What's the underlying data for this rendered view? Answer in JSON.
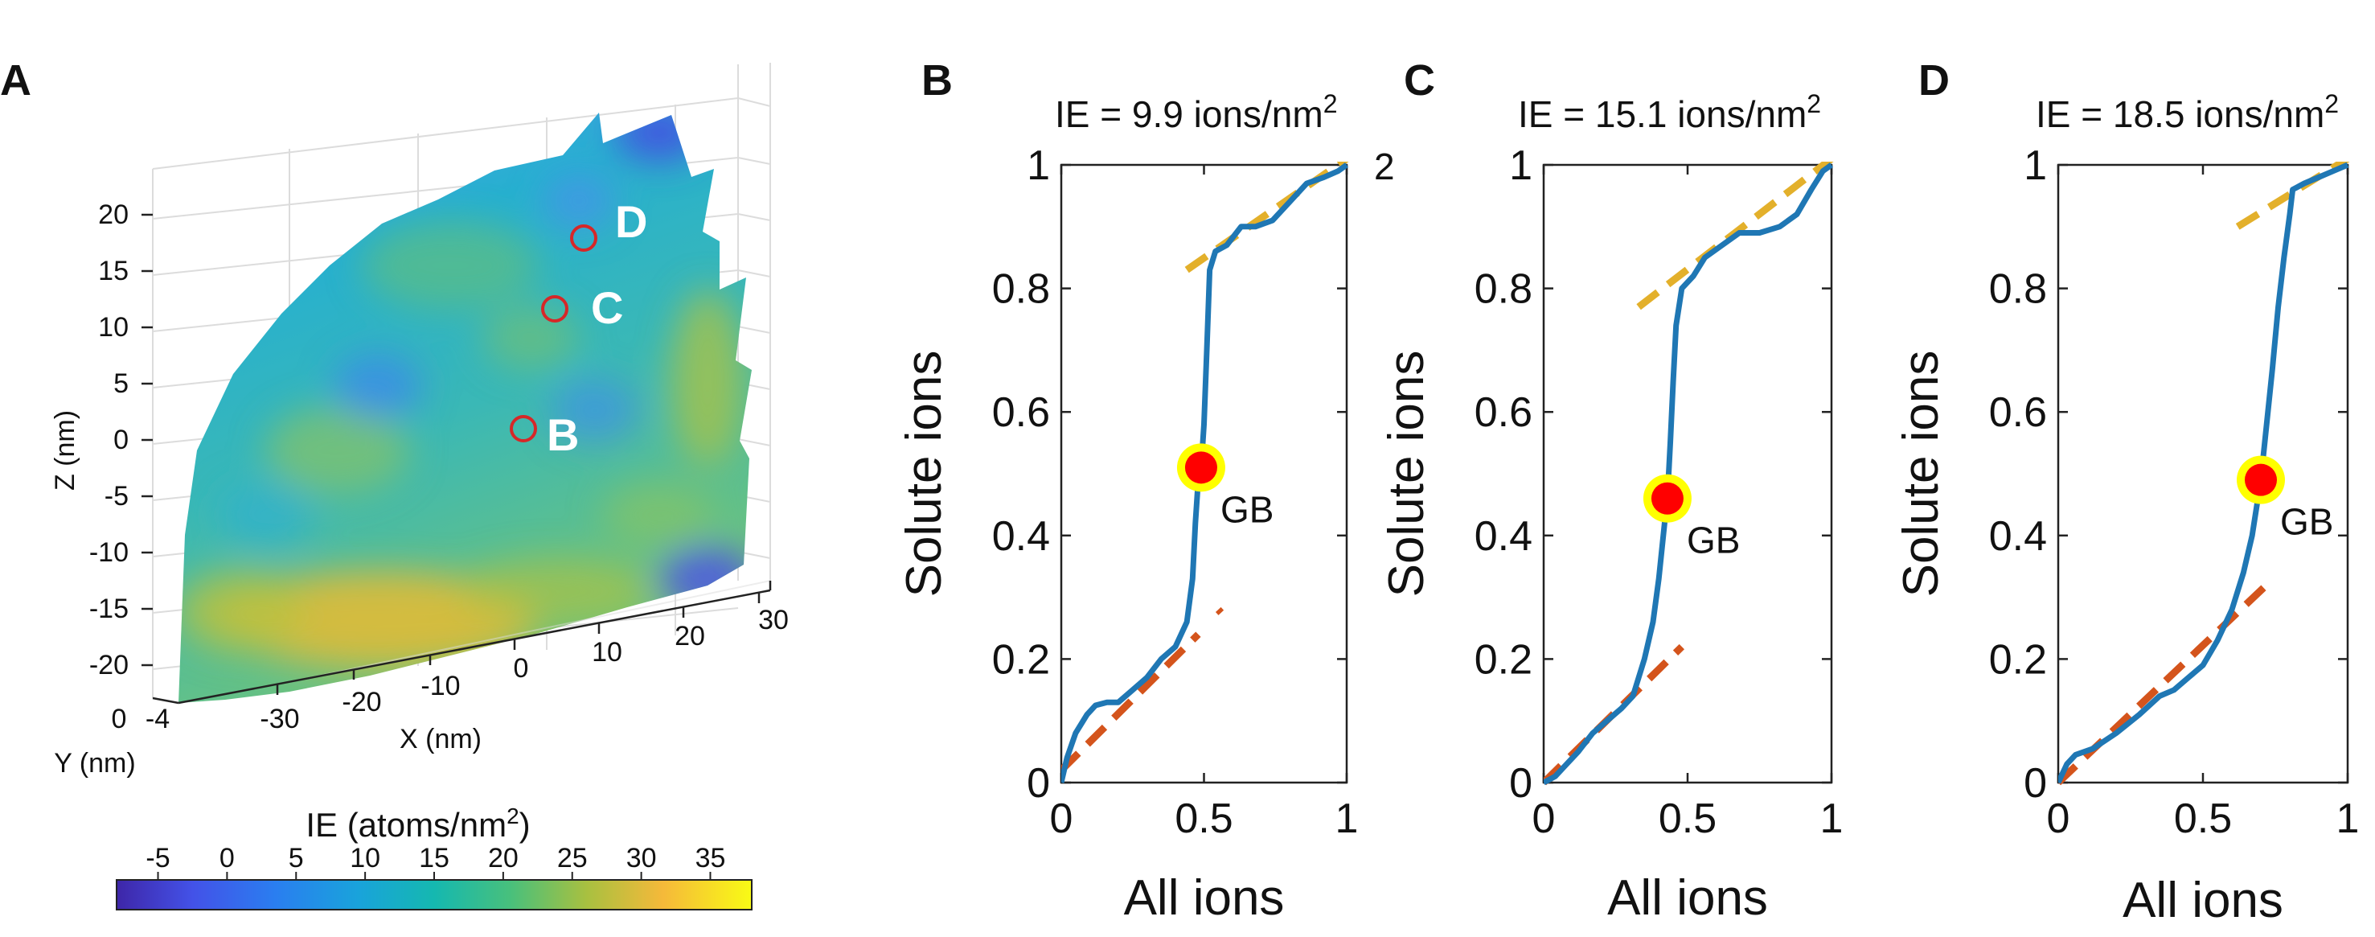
{
  "colors": {
    "curve": "#1f77b4",
    "fit_low": "#d4541c",
    "fit_high": "#e3b02b",
    "gb_fill": "#ff0000",
    "gb_ring": "#ffff00",
    "marker": "#d62728"
  },
  "panel_a": {
    "letter": "A",
    "z_label": "Z (nm)",
    "x_label": "X (nm)",
    "y_label": "Y (nm)",
    "z_ticks": [
      "20",
      "15",
      "10",
      "5",
      "0",
      "-5",
      "-10",
      "-15",
      "-20"
    ],
    "x_ticks": [
      "-30",
      "-20",
      "-10",
      "0",
      "10",
      "20",
      "30"
    ],
    "y_ticks": [
      "0",
      "-4"
    ],
    "points": [
      {
        "id": "B",
        "label": "B"
      },
      {
        "id": "C",
        "label": "C"
      },
      {
        "id": "D",
        "label": "D"
      }
    ],
    "colorbar": {
      "label_base": "IE (atoms/nm",
      "label_sup": "2",
      "label_end": ")",
      "ticks": [
        -5,
        0,
        5,
        10,
        15,
        20,
        25,
        30,
        35
      ],
      "range": [
        -8,
        38
      ]
    }
  },
  "chart_data": [
    {
      "type": "line",
      "panel": "B",
      "title_base": "IE = 9.9 ions/nm",
      "title_sup": "2",
      "xlabel": "All ions",
      "ylabel": "Solute ions",
      "xlim": [
        0,
        1
      ],
      "ylim": [
        0,
        1
      ],
      "xticks": [
        0,
        0.5,
        1
      ],
      "yticks": [
        0,
        0.2,
        0.4,
        0.6,
        0.8,
        1
      ],
      "xtick_labels": [
        "0",
        "0.5",
        "1"
      ],
      "ytick_labels": [
        "0",
        "0.2",
        "0.4",
        "0.6",
        "0.8",
        "1"
      ],
      "annotation": "2",
      "gb_label": "GB",
      "gb_point": [
        0.49,
        0.51
      ],
      "curve": [
        [
          0,
          0
        ],
        [
          0.02,
          0.04
        ],
        [
          0.05,
          0.08
        ],
        [
          0.09,
          0.11
        ],
        [
          0.12,
          0.125
        ],
        [
          0.16,
          0.13
        ],
        [
          0.2,
          0.13
        ],
        [
          0.25,
          0.15
        ],
        [
          0.3,
          0.17
        ],
        [
          0.35,
          0.2
        ],
        [
          0.4,
          0.22
        ],
        [
          0.44,
          0.26
        ],
        [
          0.46,
          0.33
        ],
        [
          0.47,
          0.42
        ],
        [
          0.48,
          0.49
        ],
        [
          0.49,
          0.51
        ],
        [
          0.5,
          0.58
        ],
        [
          0.51,
          0.7
        ],
        [
          0.52,
          0.83
        ],
        [
          0.54,
          0.86
        ],
        [
          0.58,
          0.87
        ],
        [
          0.63,
          0.9
        ],
        [
          0.68,
          0.9
        ],
        [
          0.74,
          0.91
        ],
        [
          0.8,
          0.94
        ],
        [
          0.86,
          0.97
        ],
        [
          0.92,
          0.98
        ],
        [
          0.97,
          0.99
        ],
        [
          1,
          1
        ]
      ],
      "fit_low": [
        [
          0,
          0.02
        ],
        [
          0.48,
          0.24
        ]
      ],
      "fit_low_stub": [
        [
          0.55,
          0.28
        ],
        [
          0.56,
          0.275
        ]
      ],
      "fit_high": [
        [
          0.44,
          0.83
        ],
        [
          1,
          1.01
        ]
      ]
    },
    {
      "type": "line",
      "panel": "C",
      "title_base": "IE = 15.1 ions/nm",
      "title_sup": "2",
      "xlabel": "All ions",
      "ylabel": "Solute ions",
      "xlim": [
        0,
        1
      ],
      "ylim": [
        0,
        1
      ],
      "xticks": [
        0,
        0.5,
        1
      ],
      "yticks": [
        0,
        0.2,
        0.4,
        0.6,
        0.8,
        1
      ],
      "xtick_labels": [
        "0",
        "0.5",
        "1"
      ],
      "ytick_labels": [
        "0",
        "0.2",
        "0.4",
        "0.6",
        "0.8",
        "1"
      ],
      "gb_label": "GB",
      "gb_point": [
        0.43,
        0.46
      ],
      "curve": [
        [
          0,
          0
        ],
        [
          0.04,
          0.01
        ],
        [
          0.08,
          0.03
        ],
        [
          0.12,
          0.05
        ],
        [
          0.17,
          0.08
        ],
        [
          0.22,
          0.1
        ],
        [
          0.27,
          0.12
        ],
        [
          0.31,
          0.14
        ],
        [
          0.35,
          0.2
        ],
        [
          0.38,
          0.26
        ],
        [
          0.4,
          0.33
        ],
        [
          0.42,
          0.42
        ],
        [
          0.43,
          0.46
        ],
        [
          0.44,
          0.55
        ],
        [
          0.45,
          0.65
        ],
        [
          0.46,
          0.74
        ],
        [
          0.48,
          0.8
        ],
        [
          0.52,
          0.82
        ],
        [
          0.56,
          0.85
        ],
        [
          0.62,
          0.87
        ],
        [
          0.68,
          0.89
        ],
        [
          0.75,
          0.89
        ],
        [
          0.82,
          0.9
        ],
        [
          0.88,
          0.92
        ],
        [
          0.93,
          0.96
        ],
        [
          0.97,
          0.99
        ],
        [
          1,
          1
        ]
      ],
      "fit_low": [
        [
          0,
          0
        ],
        [
          0.48,
          0.22
        ]
      ],
      "fit_high": [
        [
          0.33,
          0.77
        ],
        [
          1,
          1.01
        ]
      ]
    },
    {
      "type": "line",
      "panel": "D",
      "title_base": "IE = 18.5 ions/nm",
      "title_sup": "2",
      "xlabel": "All ions",
      "ylabel": "Solute ions",
      "xlim": [
        0,
        1
      ],
      "ylim": [
        0,
        1
      ],
      "xticks": [
        0,
        0.5,
        1
      ],
      "yticks": [
        0,
        0.2,
        0.4,
        0.6,
        0.8,
        1
      ],
      "xtick_labels": [
        "0",
        "0.5",
        "1"
      ],
      "ytick_labels": [
        "0",
        "0.2",
        "0.4",
        "0.6",
        "0.8",
        "1"
      ],
      "gb_label": "GB",
      "gb_point": [
        0.7,
        0.49
      ],
      "curve": [
        [
          0,
          0
        ],
        [
          0.03,
          0.03
        ],
        [
          0.06,
          0.045
        ],
        [
          0.12,
          0.055
        ],
        [
          0.2,
          0.08
        ],
        [
          0.28,
          0.11
        ],
        [
          0.35,
          0.14
        ],
        [
          0.4,
          0.15
        ],
        [
          0.45,
          0.17
        ],
        [
          0.5,
          0.19
        ],
        [
          0.55,
          0.23
        ],
        [
          0.6,
          0.28
        ],
        [
          0.64,
          0.34
        ],
        [
          0.67,
          0.4
        ],
        [
          0.69,
          0.46
        ],
        [
          0.7,
          0.49
        ],
        [
          0.72,
          0.58
        ],
        [
          0.74,
          0.67
        ],
        [
          0.76,
          0.77
        ],
        [
          0.78,
          0.85
        ],
        [
          0.8,
          0.92
        ],
        [
          0.81,
          0.96
        ],
        [
          0.85,
          0.97
        ],
        [
          0.9,
          0.98
        ],
        [
          0.95,
          0.99
        ],
        [
          1,
          1
        ]
      ],
      "fit_low": [
        [
          0,
          0
        ],
        [
          0.72,
          0.32
        ]
      ],
      "fit_high": [
        [
          0.62,
          0.9
        ],
        [
          1,
          1.01
        ]
      ]
    }
  ]
}
